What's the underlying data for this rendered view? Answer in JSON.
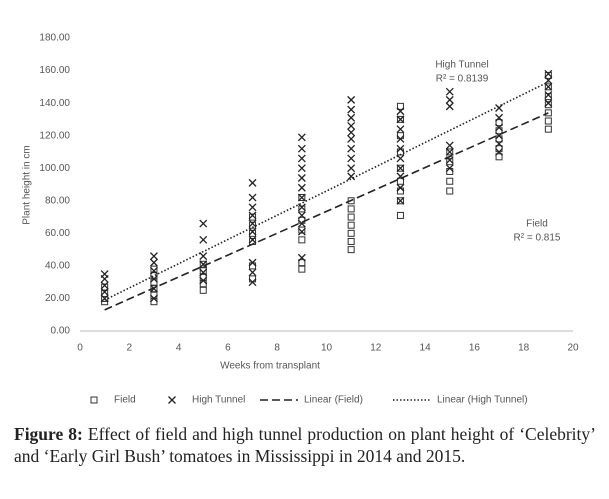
{
  "chart_data": {
    "type": "scatter",
    "xlabel": "Weeks from transplant",
    "ylabel": "Plant height in cm",
    "xlim": [
      0,
      20
    ],
    "xticks": [
      0,
      2,
      4,
      6,
      8,
      10,
      12,
      14,
      16,
      18,
      20
    ],
    "ylim": [
      0,
      180
    ],
    "yticks": [
      {
        "value": 0,
        "label": "0.00"
      },
      {
        "value": 20,
        "label": "20.00"
      },
      {
        "value": 40,
        "label": "40.00"
      },
      {
        "value": 60,
        "label": "60.00"
      },
      {
        "value": 80,
        "label": "80.00"
      },
      {
        "value": 100,
        "label": "100.00"
      },
      {
        "value": 120,
        "label": "120.00"
      },
      {
        "value": 140,
        "label": "140.00"
      },
      {
        "value": 160,
        "label": "160.00"
      },
      {
        "value": 180,
        "label": "180.00"
      }
    ],
    "grid": false,
    "legend": "bottom",
    "series": [
      {
        "name": "Field",
        "marker": "square",
        "color": "#333333",
        "x": [
          1,
          1,
          1,
          1,
          3,
          3,
          3,
          3,
          3,
          3,
          5,
          5,
          5,
          5,
          5,
          7,
          7,
          7,
          7,
          7,
          7,
          9,
          9,
          9,
          9,
          9,
          9,
          9,
          11,
          11,
          11,
          11,
          11,
          11,
          11,
          13,
          13,
          13,
          13,
          13,
          13,
          13,
          13,
          13,
          15,
          15,
          15,
          15,
          15,
          17,
          17,
          17,
          17,
          17,
          19,
          19,
          19,
          19,
          19,
          19,
          19
        ],
        "values": [
          18,
          20,
          23,
          27,
          18,
          22,
          26,
          30,
          34,
          38,
          25,
          29,
          33,
          37,
          41,
          32,
          40,
          55,
          60,
          65,
          70,
          38,
          42,
          56,
          62,
          68,
          75,
          82,
          50,
          55,
          60,
          65,
          70,
          75,
          80,
          71,
          80,
          86,
          92,
          100,
          110,
          120,
          130,
          138,
          86,
          92,
          98,
          104,
          110,
          107,
          112,
          118,
          123,
          128,
          124,
          129,
          134,
          139,
          144,
          150,
          157
        ]
      },
      {
        "name": "High Tunnel",
        "marker": "x",
        "color": "#222222",
        "x": [
          1,
          1,
          1,
          1,
          1,
          3,
          3,
          3,
          3,
          3,
          3,
          5,
          5,
          5,
          5,
          5,
          5,
          7,
          7,
          7,
          7,
          7,
          7,
          7,
          7,
          7,
          7,
          9,
          9,
          9,
          9,
          9,
          9,
          9,
          9,
          9,
          9,
          9,
          9,
          11,
          11,
          11,
          11,
          11,
          11,
          11,
          11,
          11,
          11,
          13,
          13,
          13,
          13,
          13,
          13,
          13,
          13,
          13,
          13,
          15,
          15,
          15,
          15,
          15,
          15,
          15,
          17,
          17,
          17,
          17,
          17,
          17,
          19,
          19,
          19,
          19,
          19
        ],
        "values": [
          20,
          24,
          28,
          32,
          35,
          20,
          26,
          32,
          37,
          42,
          46,
          31,
          36,
          41,
          46,
          56,
          66,
          30,
          36,
          42,
          56,
          61,
          66,
          71,
          76,
          82,
          91,
          45,
          61,
          66,
          71,
          76,
          82,
          88,
          94,
          100,
          106,
          112,
          119,
          95,
          100,
          106,
          112,
          118,
          122,
          126,
          131,
          136,
          142,
          80,
          88,
          95,
          100,
          106,
          112,
          118,
          124,
          130,
          135,
          100,
          105,
          110,
          114,
          138,
          142,
          147,
          110,
          115,
          120,
          125,
          131,
          137,
          140,
          145,
          150,
          154,
          158
        ]
      },
      {
        "name": "Linear (Field)",
        "line": "dashed",
        "color": "#222222",
        "x": [
          1,
          19
        ],
        "values": [
          13,
          134
        ]
      },
      {
        "name": "Linear (High Tunnel)",
        "line": "dotted",
        "color": "#222222",
        "x": [
          1,
          19
        ],
        "values": [
          19,
          153
        ]
      }
    ],
    "annotations": [
      "High Tunnel",
      "R² = 0.8139",
      "Field",
      "R² = 0.815"
    ]
  },
  "caption": {
    "label": "Figure 8:",
    "text": "Effect of field and high tunnel production on plant height of ‘Celebrity’ and ‘Early Girl Bush’ tomatoes in Mississippi in 2014 and 2015."
  }
}
